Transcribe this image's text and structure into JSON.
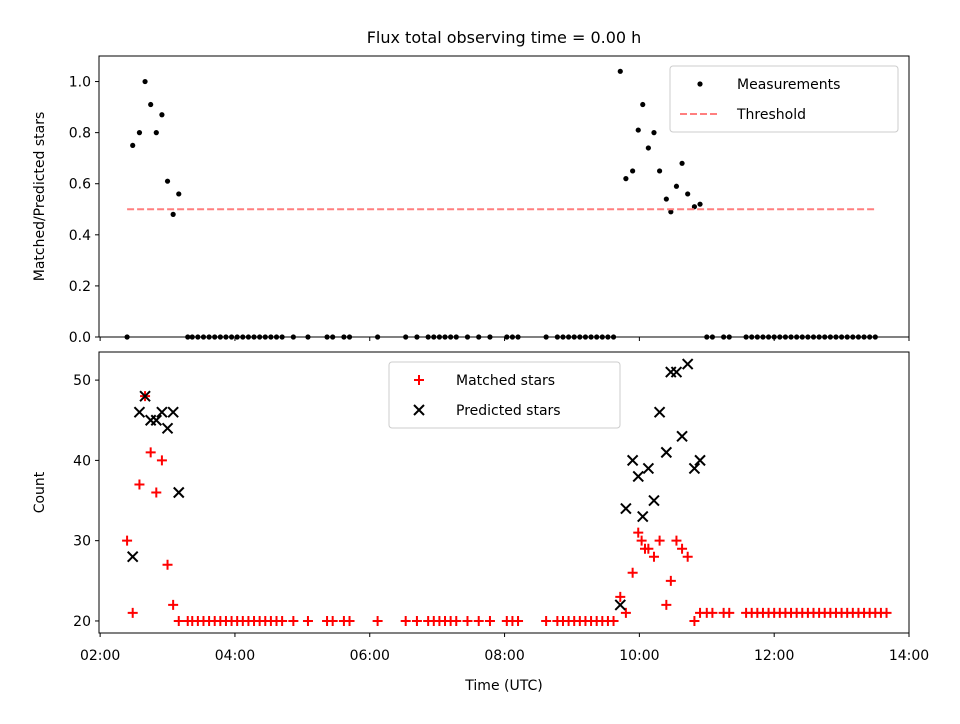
{
  "figure": {
    "title": "Flux total observing time = 0.00 h"
  },
  "chart_data": [
    {
      "type": "scatter",
      "panel": "top",
      "title": "Flux total observing time = 0.00 h",
      "xlabel": "",
      "ylabel": "Matched/Predicted stars",
      "xlim": [
        "01:59",
        "14:00"
      ],
      "ylim": [
        0.0,
        1.1
      ],
      "yticks": [
        0.0,
        0.2,
        0.4,
        0.6,
        0.8,
        1.0
      ],
      "ytick_labels": [
        "0.0",
        "0.2",
        "0.4",
        "0.6",
        "0.8",
        "1.0"
      ],
      "grid": false,
      "legend": {
        "placement": "upper-right",
        "entries": [
          "Measurements",
          "Threshold"
        ]
      },
      "series": [
        {
          "name": "Measurements",
          "marker": "dot",
          "color": "#000000",
          "points": [
            [
              "02:24",
              0.0
            ],
            [
              "02:29",
              0.75
            ],
            [
              "02:35",
              0.8
            ],
            [
              "02:40",
              1.0
            ],
            [
              "02:45",
              0.91
            ],
            [
              "02:50",
              0.8
            ],
            [
              "02:55",
              0.87
            ],
            [
              "03:00",
              0.61
            ],
            [
              "03:05",
              0.48
            ],
            [
              "03:10",
              0.56
            ],
            [
              "03:18",
              0.0
            ],
            [
              "03:22",
              0.0
            ],
            [
              "03:27",
              0.0
            ],
            [
              "03:32",
              0.0
            ],
            [
              "03:37",
              0.0
            ],
            [
              "03:42",
              0.0
            ],
            [
              "03:47",
              0.0
            ],
            [
              "03:52",
              0.0
            ],
            [
              "03:57",
              0.0
            ],
            [
              "04:02",
              0.0
            ],
            [
              "04:07",
              0.0
            ],
            [
              "04:12",
              0.0
            ],
            [
              "04:17",
              0.0
            ],
            [
              "04:22",
              0.0
            ],
            [
              "04:27",
              0.0
            ],
            [
              "04:32",
              0.0
            ],
            [
              "04:37",
              0.0
            ],
            [
              "04:42",
              0.0
            ],
            [
              "04:52",
              0.0
            ],
            [
              "05:05",
              0.0
            ],
            [
              "05:22",
              0.0
            ],
            [
              "05:27",
              0.0
            ],
            [
              "05:37",
              0.0
            ],
            [
              "05:42",
              0.0
            ],
            [
              "06:07",
              0.0
            ],
            [
              "06:32",
              0.0
            ],
            [
              "06:42",
              0.0
            ],
            [
              "06:52",
              0.0
            ],
            [
              "06:57",
              0.0
            ],
            [
              "07:02",
              0.0
            ],
            [
              "07:07",
              0.0
            ],
            [
              "07:12",
              0.0
            ],
            [
              "07:17",
              0.0
            ],
            [
              "07:27",
              0.0
            ],
            [
              "07:37",
              0.0
            ],
            [
              "07:47",
              0.0
            ],
            [
              "08:02",
              0.0
            ],
            [
              "08:07",
              0.0
            ],
            [
              "08:12",
              0.0
            ],
            [
              "08:37",
              0.0
            ],
            [
              "08:47",
              0.0
            ],
            [
              "08:52",
              0.0
            ],
            [
              "08:57",
              0.0
            ],
            [
              "09:02",
              0.0
            ],
            [
              "09:07",
              0.0
            ],
            [
              "09:12",
              0.0
            ],
            [
              "09:17",
              0.0
            ],
            [
              "09:22",
              0.0
            ],
            [
              "09:27",
              0.0
            ],
            [
              "09:32",
              0.0
            ],
            [
              "09:37",
              0.0
            ],
            [
              "09:43",
              1.04
            ],
            [
              "09:48",
              0.62
            ],
            [
              "09:54",
              0.65
            ],
            [
              "09:59",
              0.81
            ],
            [
              "10:03",
              0.91
            ],
            [
              "10:08",
              0.74
            ],
            [
              "10:13",
              0.8
            ],
            [
              "10:18",
              0.65
            ],
            [
              "10:24",
              0.54
            ],
            [
              "10:28",
              0.49
            ],
            [
              "10:33",
              0.59
            ],
            [
              "10:38",
              0.68
            ],
            [
              "10:43",
              0.56
            ],
            [
              "10:49",
              0.51
            ],
            [
              "10:54",
              0.52
            ],
            [
              "11:00",
              0.0
            ],
            [
              "11:05",
              0.0
            ],
            [
              "11:15",
              0.0
            ],
            [
              "11:20",
              0.0
            ],
            [
              "11:35",
              0.0
            ],
            [
              "11:40",
              0.0
            ],
            [
              "11:45",
              0.0
            ],
            [
              "11:50",
              0.0
            ],
            [
              "11:55",
              0.0
            ],
            [
              "12:00",
              0.0
            ],
            [
              "12:05",
              0.0
            ],
            [
              "12:10",
              0.0
            ],
            [
              "12:15",
              0.0
            ],
            [
              "12:20",
              0.0
            ],
            [
              "12:25",
              0.0
            ],
            [
              "12:30",
              0.0
            ],
            [
              "12:35",
              0.0
            ],
            [
              "12:40",
              0.0
            ],
            [
              "12:45",
              0.0
            ],
            [
              "12:50",
              0.0
            ],
            [
              "12:55",
              0.0
            ],
            [
              "13:00",
              0.0
            ],
            [
              "13:05",
              0.0
            ],
            [
              "13:10",
              0.0
            ],
            [
              "13:15",
              0.0
            ],
            [
              "13:20",
              0.0
            ],
            [
              "13:25",
              0.0
            ],
            [
              "13:30",
              0.0
            ]
          ]
        },
        {
          "name": "Threshold",
          "marker": "dashed-line",
          "color": "#ff7f7f",
          "points": [
            [
              "02:24",
              0.5
            ],
            [
              "13:30",
              0.5
            ]
          ]
        }
      ]
    },
    {
      "type": "scatter",
      "panel": "bottom",
      "title": "",
      "xlabel": "Time (UTC)",
      "ylabel": "Count",
      "xlim": [
        "01:59",
        "14:00"
      ],
      "ylim": [
        18.5,
        53.5
      ],
      "xticks": [
        "02:00",
        "04:00",
        "06:00",
        "08:00",
        "10:00",
        "12:00",
        "14:00"
      ],
      "xtick_labels": [
        "02:00",
        "04:00",
        "06:00",
        "08:00",
        "10:00",
        "12:00",
        "14:00"
      ],
      "yticks": [
        20,
        30,
        40,
        50
      ],
      "ytick_labels": [
        "20",
        "30",
        "40",
        "50"
      ],
      "grid": false,
      "legend": {
        "placement": "upper-center",
        "entries": [
          "Matched stars",
          "Predicted stars"
        ]
      },
      "series": [
        {
          "name": "Matched stars",
          "marker": "plus",
          "color": "#ff0000",
          "points": [
            [
              "02:24",
              30
            ],
            [
              "02:29",
              21
            ],
            [
              "02:35",
              37
            ],
            [
              "02:40",
              48
            ],
            [
              "02:45",
              41
            ],
            [
              "02:50",
              36
            ],
            [
              "02:55",
              40
            ],
            [
              "03:00",
              27
            ],
            [
              "03:05",
              22
            ],
            [
              "03:10",
              20
            ],
            [
              "03:18",
              20
            ],
            [
              "03:22",
              20
            ],
            [
              "03:27",
              20
            ],
            [
              "03:32",
              20
            ],
            [
              "03:37",
              20
            ],
            [
              "03:42",
              20
            ],
            [
              "03:47",
              20
            ],
            [
              "03:52",
              20
            ],
            [
              "03:57",
              20
            ],
            [
              "04:02",
              20
            ],
            [
              "04:07",
              20
            ],
            [
              "04:12",
              20
            ],
            [
              "04:17",
              20
            ],
            [
              "04:22",
              20
            ],
            [
              "04:27",
              20
            ],
            [
              "04:32",
              20
            ],
            [
              "04:37",
              20
            ],
            [
              "04:42",
              20
            ],
            [
              "04:52",
              20
            ],
            [
              "05:05",
              20
            ],
            [
              "05:22",
              20
            ],
            [
              "05:27",
              20
            ],
            [
              "05:37",
              20
            ],
            [
              "05:42",
              20
            ],
            [
              "06:07",
              20
            ],
            [
              "06:32",
              20
            ],
            [
              "06:42",
              20
            ],
            [
              "06:52",
              20
            ],
            [
              "06:57",
              20
            ],
            [
              "07:02",
              20
            ],
            [
              "07:07",
              20
            ],
            [
              "07:12",
              20
            ],
            [
              "07:17",
              20
            ],
            [
              "07:27",
              20
            ],
            [
              "07:37",
              20
            ],
            [
              "07:47",
              20
            ],
            [
              "08:02",
              20
            ],
            [
              "08:07",
              20
            ],
            [
              "08:12",
              20
            ],
            [
              "08:37",
              20
            ],
            [
              "08:47",
              20
            ],
            [
              "08:52",
              20
            ],
            [
              "08:57",
              20
            ],
            [
              "09:02",
              20
            ],
            [
              "09:07",
              20
            ],
            [
              "09:12",
              20
            ],
            [
              "09:17",
              20
            ],
            [
              "09:22",
              20
            ],
            [
              "09:27",
              20
            ],
            [
              "09:32",
              20
            ],
            [
              "09:37",
              20
            ],
            [
              "09:43",
              23
            ],
            [
              "09:48",
              21
            ],
            [
              "09:54",
              26
            ],
            [
              "09:59",
              31
            ],
            [
              "10:02",
              30
            ],
            [
              "10:05",
              29
            ],
            [
              "10:08",
              29
            ],
            [
              "10:13",
              28
            ],
            [
              "10:18",
              30
            ],
            [
              "10:24",
              22
            ],
            [
              "10:28",
              25
            ],
            [
              "10:33",
              30
            ],
            [
              "10:38",
              29
            ],
            [
              "10:43",
              28
            ],
            [
              "10:49",
              20
            ],
            [
              "10:54",
              21
            ],
            [
              "11:00",
              21
            ],
            [
              "11:05",
              21
            ],
            [
              "11:15",
              21
            ],
            [
              "11:20",
              21
            ],
            [
              "11:35",
              21
            ],
            [
              "11:40",
              21
            ],
            [
              "11:45",
              21
            ],
            [
              "11:50",
              21
            ],
            [
              "11:55",
              21
            ],
            [
              "12:00",
              21
            ],
            [
              "12:05",
              21
            ],
            [
              "12:10",
              21
            ],
            [
              "12:15",
              21
            ],
            [
              "12:20",
              21
            ],
            [
              "12:25",
              21
            ],
            [
              "12:30",
              21
            ],
            [
              "12:35",
              21
            ],
            [
              "12:40",
              21
            ],
            [
              "12:45",
              21
            ],
            [
              "12:50",
              21
            ],
            [
              "12:55",
              21
            ],
            [
              "13:00",
              21
            ],
            [
              "13:05",
              21
            ],
            [
              "13:10",
              21
            ],
            [
              "13:15",
              21
            ],
            [
              "13:20",
              21
            ],
            [
              "13:25",
              21
            ],
            [
              "13:30",
              21
            ],
            [
              "13:35",
              21
            ],
            [
              "13:40",
              21
            ]
          ]
        },
        {
          "name": "Predicted stars",
          "marker": "x",
          "color": "#000000",
          "points": [
            [
              "02:29",
              28
            ],
            [
              "02:35",
              46
            ],
            [
              "02:40",
              48
            ],
            [
              "02:45",
              45
            ],
            [
              "02:50",
              45
            ],
            [
              "02:55",
              46
            ],
            [
              "03:00",
              44
            ],
            [
              "03:05",
              46
            ],
            [
              "03:10",
              36
            ],
            [
              "09:43",
              22
            ],
            [
              "09:48",
              34
            ],
            [
              "09:54",
              40
            ],
            [
              "09:59",
              38
            ],
            [
              "10:03",
              33
            ],
            [
              "10:08",
              39
            ],
            [
              "10:13",
              35
            ],
            [
              "10:18",
              46
            ],
            [
              "10:24",
              41
            ],
            [
              "10:28",
              51
            ],
            [
              "10:33",
              51
            ],
            [
              "10:38",
              43
            ],
            [
              "10:43",
              52
            ],
            [
              "10:49",
              39
            ],
            [
              "10:54",
              40
            ]
          ]
        }
      ]
    }
  ]
}
